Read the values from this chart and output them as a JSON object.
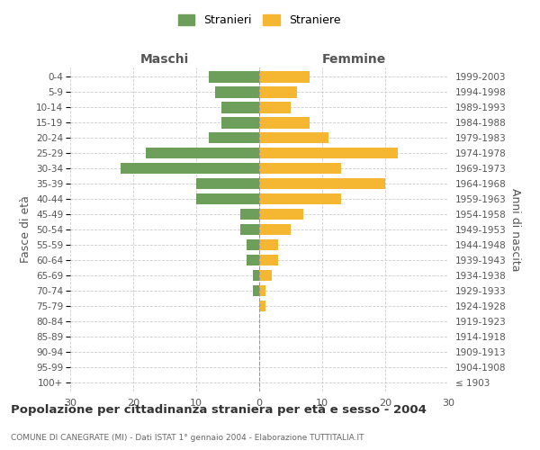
{
  "age_groups": [
    "100+",
    "95-99",
    "90-94",
    "85-89",
    "80-84",
    "75-79",
    "70-74",
    "65-69",
    "60-64",
    "55-59",
    "50-54",
    "45-49",
    "40-44",
    "35-39",
    "30-34",
    "25-29",
    "20-24",
    "15-19",
    "10-14",
    "5-9",
    "0-4"
  ],
  "birth_years": [
    "≤ 1903",
    "1904-1908",
    "1909-1913",
    "1914-1918",
    "1919-1923",
    "1924-1928",
    "1929-1933",
    "1934-1938",
    "1939-1943",
    "1944-1948",
    "1949-1953",
    "1954-1958",
    "1959-1963",
    "1964-1968",
    "1969-1973",
    "1974-1978",
    "1979-1983",
    "1984-1988",
    "1989-1993",
    "1994-1998",
    "1999-2003"
  ],
  "maschi": [
    0,
    0,
    0,
    0,
    0,
    0,
    1,
    1,
    2,
    2,
    3,
    3,
    10,
    10,
    22,
    18,
    8,
    6,
    6,
    7,
    8
  ],
  "femmine": [
    0,
    0,
    0,
    0,
    0,
    1,
    1,
    2,
    3,
    3,
    5,
    7,
    13,
    20,
    13,
    22,
    11,
    8,
    5,
    6,
    8
  ],
  "color_maschi": "#6d9e5a",
  "color_femmine": "#f5b731",
  "title": "Popolazione per cittadinanza straniera per età e sesso - 2004",
  "subtitle": "COMUNE DI CANEGRATE (MI) - Dati ISTAT 1° gennaio 2004 - Elaborazione TUTTITALIA.IT",
  "xlabel_left": "Maschi",
  "xlabel_right": "Femmine",
  "ylabel_left": "Fasce di età",
  "ylabel_right": "Anni di nascita",
  "legend_maschi": "Stranieri",
  "legend_femmine": "Straniere",
  "xlim": 30,
  "background_color": "#ffffff",
  "grid_color": "#cccccc"
}
